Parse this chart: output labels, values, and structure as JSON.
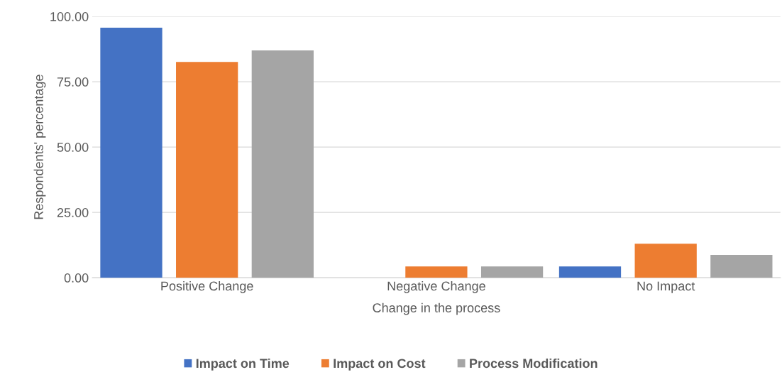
{
  "chart_data": {
    "type": "bar",
    "xlabel": "Change in the process",
    "ylabel": "Respondents' percentage",
    "categories": [
      "Positive Change",
      "Negative Change",
      "No Impact"
    ],
    "series": [
      {
        "name": "Impact on Time",
        "color": "#4472c4",
        "values": [
          95.7,
          0,
          4.3
        ]
      },
      {
        "name": "Impact on Cost",
        "color": "#ed7d31",
        "values": [
          82.6,
          4.3,
          13.0
        ]
      },
      {
        "name": "Process Modification",
        "color": "#a5a5a5",
        "values": [
          87.0,
          4.3,
          8.7
        ]
      }
    ],
    "ylim": [
      0,
      100
    ],
    "yticks": [
      {
        "value": 0,
        "label": "0.00"
      },
      {
        "value": 25,
        "label": "25.00"
      },
      {
        "value": 50,
        "label": "50.00"
      },
      {
        "value": 75,
        "label": "75.00"
      },
      {
        "value": 100,
        "label": "100.00"
      }
    ],
    "grid": "y",
    "legend": "bottom"
  }
}
